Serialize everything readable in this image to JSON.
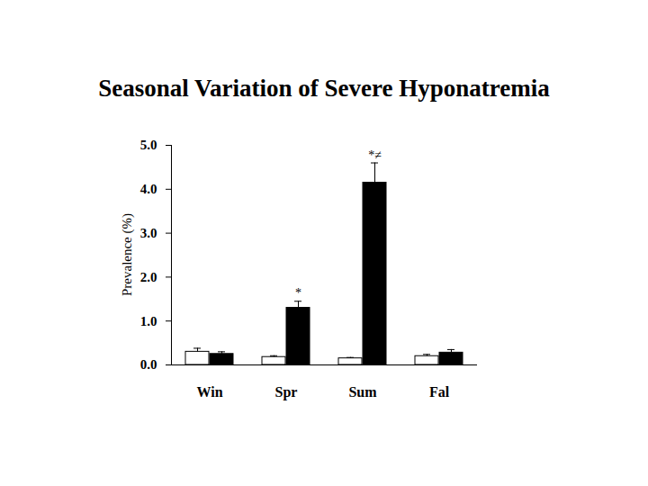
{
  "chart_data": {
    "type": "bar",
    "title": "Seasonal Variation of Severe Hyponatremia",
    "y_label": "Prevalence (%)",
    "categories": [
      "Win",
      "Spr",
      "Sum",
      "Fal",
      null
    ],
    "series": [
      {
        "color": "#ffffff",
        "values": [
          0.3,
          0.18,
          0.15,
          0.2,
          null
        ],
        "errors": [
          0.08,
          0.03,
          0.02,
          0.04,
          null
        ],
        "annotations": [
          null,
          null,
          null,
          null,
          null
        ]
      },
      {
        "color": "#000000",
        "values": [
          0.25,
          1.3,
          4.15,
          0.28,
          null
        ],
        "errors": [
          0.05,
          0.15,
          0.45,
          0.07,
          null
        ],
        "annotations": [
          null,
          "*",
          "*≠",
          null,
          null
        ]
      }
    ],
    "ylim": [
      0,
      5
    ],
    "yticks": [
      0,
      1,
      2,
      3,
      4,
      5
    ],
    "grid": false
  }
}
